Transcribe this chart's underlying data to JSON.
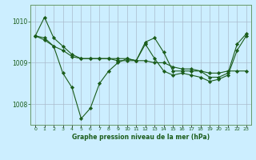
{
  "title": "Graphe pression niveau de la mer (hPa)",
  "bg_color": "#cceeff",
  "plot_bg_color": "#cceeff",
  "grid_color": "#aabbcc",
  "line_color": "#1a5c1a",
  "marker_color": "#1a5c1a",
  "xlim": [
    -0.5,
    23.5
  ],
  "ylim": [
    1007.5,
    1010.4
  ],
  "yticks": [
    1008,
    1009,
    1010
  ],
  "xticks": [
    0,
    1,
    2,
    3,
    4,
    5,
    6,
    7,
    8,
    9,
    10,
    11,
    12,
    13,
    14,
    15,
    16,
    17,
    18,
    19,
    20,
    21,
    22,
    23
  ],
  "series1_x": [
    0,
    1,
    2,
    3,
    4,
    5,
    6,
    7,
    8,
    9,
    10,
    11,
    12,
    13,
    14,
    15,
    16,
    17,
    18,
    19,
    20,
    21,
    22,
    23
  ],
  "series1_y": [
    1009.65,
    1010.1,
    1009.6,
    1009.4,
    1009.2,
    1009.1,
    1009.1,
    1009.1,
    1009.1,
    1009.05,
    1009.05,
    1009.05,
    1009.05,
    1009.0,
    1009.0,
    1008.9,
    1008.85,
    1008.85,
    1008.8,
    1008.75,
    1008.75,
    1008.8,
    1008.8,
    1008.8
  ],
  "series2_x": [
    0,
    1,
    2,
    3,
    4,
    5,
    6,
    7,
    8,
    9,
    10,
    11,
    12,
    13,
    14,
    15,
    16,
    17,
    18,
    19,
    20,
    21,
    22,
    23
  ],
  "series2_y": [
    1009.65,
    1009.6,
    1009.4,
    1008.75,
    1008.4,
    1007.65,
    1007.9,
    1008.5,
    1008.8,
    1009.0,
    1009.1,
    1009.05,
    1009.45,
    1009.1,
    1008.8,
    1008.7,
    1008.75,
    1008.7,
    1008.65,
    1008.55,
    1008.6,
    1008.7,
    1009.3,
    1009.65
  ],
  "series3_x": [
    0,
    1,
    2,
    3,
    4,
    5,
    6,
    7,
    8,
    9,
    10,
    11,
    12,
    13,
    14,
    15,
    16,
    17,
    18,
    19,
    20,
    21,
    22,
    23
  ],
  "series3_y": [
    1009.65,
    1009.55,
    1009.4,
    1009.3,
    1009.15,
    1009.1,
    1009.1,
    1009.1,
    1009.1,
    1009.1,
    1009.1,
    1009.05,
    1009.5,
    1009.6,
    1009.25,
    1008.8,
    1008.8,
    1008.8,
    1008.8,
    1008.65,
    1008.65,
    1008.75,
    1009.45,
    1009.7
  ]
}
